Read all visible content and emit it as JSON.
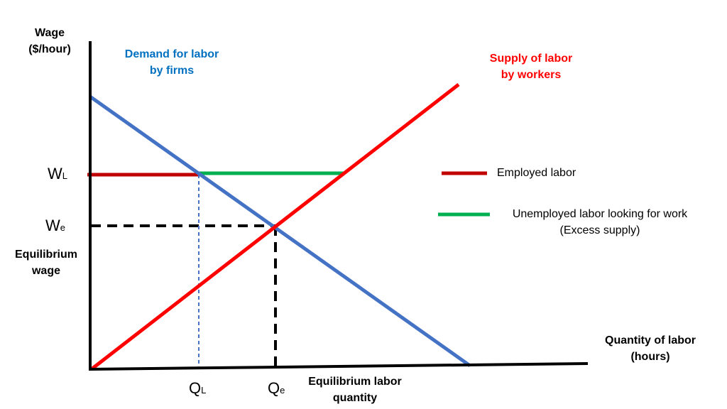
{
  "colors": {
    "demand": "#4472C4",
    "supply": "#FF0000",
    "employed": "#C00000",
    "unemployed": "#00B050",
    "axis": "#000000"
  },
  "axes": {
    "y_label_line1": "Wage",
    "y_label_line2": "($/hour)",
    "x_label_line1": "Quantity of labor",
    "x_label_line2": "(hours)"
  },
  "curves": {
    "demand_line1": "Demand for labor",
    "demand_line2": "by firms",
    "supply_line1": "Supply of labor",
    "supply_line2": "by workers"
  },
  "levels": {
    "wl_main": "W",
    "wl_sub": "L",
    "we_main": "W",
    "we_sub": "e",
    "eq_wage_line1": "Equilibrium",
    "eq_wage_line2": "wage",
    "ql_main": "Q",
    "ql_sub": "L",
    "qe_main": "Q",
    "qe_sub": "e",
    "eq_qty_line1": "Equilibrium labor",
    "eq_qty_line2": "quantity"
  },
  "legend": {
    "employed": "Employed labor",
    "unemployed_line1": "Unemployed labor  looking for work",
    "unemployed_line2": "(Excess supply)"
  }
}
